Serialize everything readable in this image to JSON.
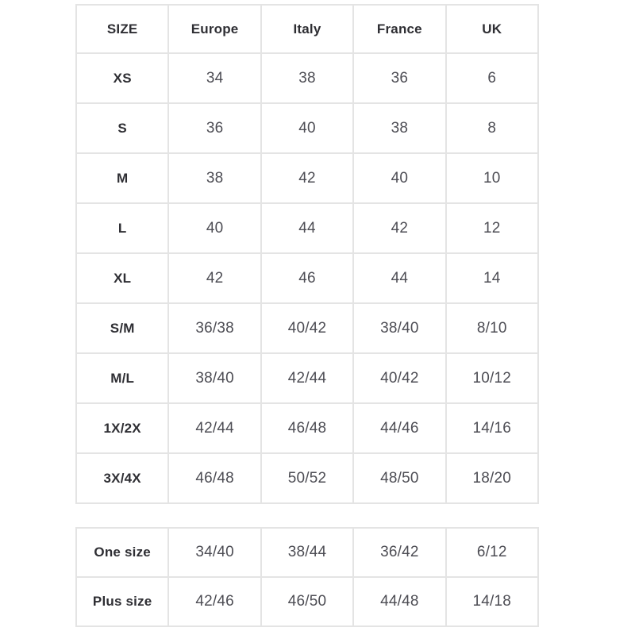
{
  "colors": {
    "background": "#ffffff",
    "grid_border": "#e4e4e4",
    "header_text": "#2e2e33",
    "cell_text": "#4d4d54"
  },
  "chart_data": [
    {
      "type": "table",
      "columns": [
        "SIZE",
        "Europe",
        "Italy",
        "France",
        "UK"
      ],
      "rows": [
        [
          "XS",
          "34",
          "38",
          "36",
          "6"
        ],
        [
          "S",
          "36",
          "40",
          "38",
          "8"
        ],
        [
          "M",
          "38",
          "42",
          "40",
          "10"
        ],
        [
          "L",
          "40",
          "44",
          "42",
          "12"
        ],
        [
          "XL",
          "42",
          "46",
          "44",
          "14"
        ],
        [
          "S/M",
          "36/38",
          "40/42",
          "38/40",
          "8/10"
        ],
        [
          "M/L",
          "38/40",
          "42/44",
          "40/42",
          "10/12"
        ],
        [
          "1X/2X",
          "42/44",
          "46/48",
          "44/46",
          "14/16"
        ],
        [
          "3X/4X",
          "46/48",
          "50/52",
          "48/50",
          "18/20"
        ]
      ],
      "layout": {
        "grid": true,
        "header_row_bold": true,
        "first_column_bold": true
      }
    },
    {
      "type": "table",
      "columns": [],
      "rows": [
        [
          "One size",
          "34/40",
          "38/44",
          "36/42",
          "6/12"
        ],
        [
          "Plus size",
          "42/46",
          "46/50",
          "44/48",
          "14/18"
        ]
      ],
      "layout": {
        "grid": true,
        "first_column_bold": true,
        "note": "column order matches first table: Europe, Italy, France, UK"
      }
    }
  ]
}
